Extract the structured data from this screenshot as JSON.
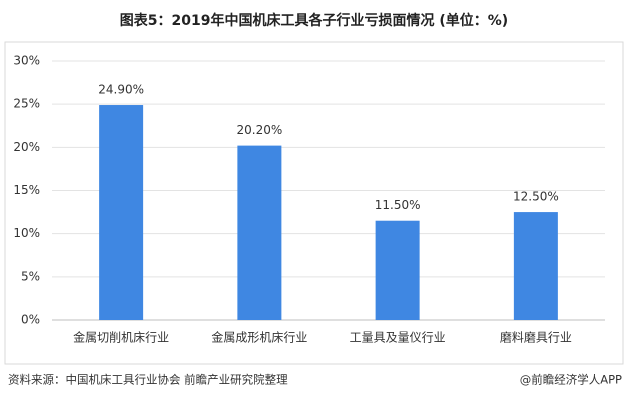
{
  "chart_data": {
    "type": "bar",
    "title": "图表5：2019年中国机床工具各子行业亏损面情况 (单位：%)",
    "categories": [
      "金属切削机床行业",
      "金属成形机床行业",
      "工量具及量仪行业",
      "磨料磨具行业"
    ],
    "values": [
      24.9,
      20.2,
      11.5,
      12.5
    ],
    "value_labels": [
      "24.90%",
      "20.20%",
      "11.50%",
      "12.50%"
    ],
    "color": "#3f87e2",
    "ylim": [
      0,
      30
    ],
    "yticks": [
      {
        "value": 0,
        "label": "0%"
      },
      {
        "value": 5,
        "label": "5%"
      },
      {
        "value": 10,
        "label": "10%"
      },
      {
        "value": 15,
        "label": "15%"
      },
      {
        "value": 20,
        "label": "20%"
      },
      {
        "value": 25,
        "label": "25%"
      },
      {
        "value": 30,
        "label": "30%"
      }
    ],
    "grid": true
  },
  "footer": {
    "source": "资料来源：中国机床工具行业协会 前瞻产业研究院整理",
    "brand": "@前瞻经济学人APP"
  }
}
